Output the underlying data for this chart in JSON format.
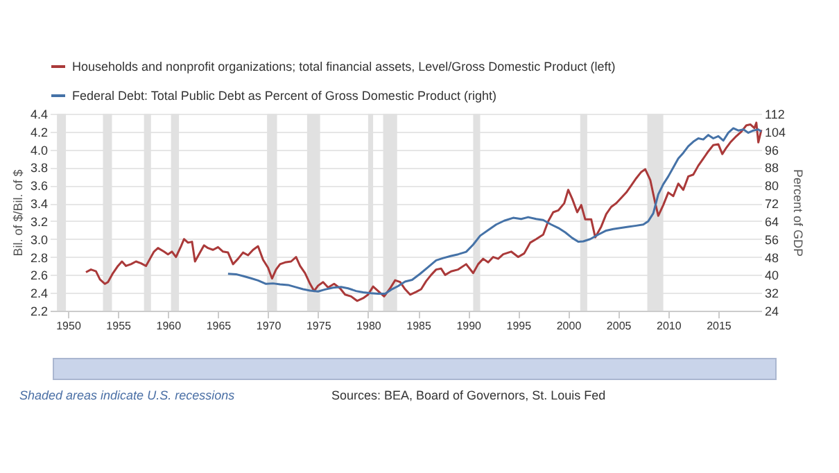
{
  "chart_data": {
    "type": "line",
    "ylabel": "Bil. of $/Bil. of $",
    "y2label": "Percent of GDP",
    "xlim": [
      1948.2,
      2019.3
    ],
    "xticks": [
      1950,
      1955,
      1960,
      1965,
      1970,
      1975,
      1980,
      1985,
      1990,
      1995,
      2000,
      2005,
      2010,
      2015
    ],
    "ylim": [
      2.2,
      4.4
    ],
    "yticks": [
      2.2,
      2.4,
      2.6,
      2.8,
      {
        "value": 3,
        "label": "3.0"
      },
      3.2,
      3.4,
      3.6,
      3.8,
      {
        "value": 4,
        "label": "4.0"
      },
      4.2,
      4.4
    ],
    "y2lim": [
      24,
      112
    ],
    "y2ticks": [
      24,
      32,
      40,
      48,
      56,
      64,
      72,
      80,
      88,
      96,
      104,
      112
    ],
    "grid": "y",
    "legend": "top left",
    "bands": [
      {
        "axis": "x",
        "from": 1948.9,
        "to": 1949.8,
        "color": "#e1e1e1"
      },
      {
        "axis": "x",
        "from": 1953.5,
        "to": 1954.4,
        "color": "#e1e1e1"
      },
      {
        "axis": "x",
        "from": 1957.6,
        "to": 1958.3,
        "color": "#e1e1e1"
      },
      {
        "axis": "x",
        "from": 1960.3,
        "to": 1961.1,
        "color": "#e1e1e1"
      },
      {
        "axis": "x",
        "from": 1969.9,
        "to": 1970.9,
        "color": "#e1e1e1"
      },
      {
        "axis": "x",
        "from": 1973.9,
        "to": 1975.2,
        "color": "#e1e1e1"
      },
      {
        "axis": "x",
        "from": 1980.0,
        "to": 1980.5,
        "color": "#e1e1e1"
      },
      {
        "axis": "x",
        "from": 1981.5,
        "to": 1982.9,
        "color": "#e1e1e1"
      },
      {
        "axis": "x",
        "from": 1990.5,
        "to": 1991.2,
        "color": "#e1e1e1"
      },
      {
        "axis": "x",
        "from": 2001.2,
        "to": 2001.9,
        "color": "#e1e1e1"
      },
      {
        "axis": "x",
        "from": 2007.9,
        "to": 2009.5,
        "color": "#e1e1e1"
      }
    ],
    "annotations": [
      "Shaded areas indicate U.S. recessions",
      "Sources: BEA, Board of Governors, St. Louis Fed"
    ],
    "series": [
      {
        "name": "Households and nonprofit organizations; total financial assets, Level/Gross Domestic Product (left)",
        "color": "#aa3939",
        "x": [
          1951.8,
          1952.3,
          1952.8,
          1953.2,
          1953.7,
          1954.0,
          1954.5,
          1955.0,
          1955.4,
          1955.8,
          1956.3,
          1956.8,
          1957.3,
          1957.8,
          1958.2,
          1958.6,
          1959.0,
          1959.6,
          1960.0,
          1960.4,
          1960.8,
          1961.3,
          1961.6,
          1962.0,
          1962.4,
          1962.7,
          1963.2,
          1963.6,
          1964.0,
          1964.5,
          1965.0,
          1965.5,
          1966.0,
          1966.5,
          1967.0,
          1967.5,
          1968.0,
          1968.5,
          1969.0,
          1969.5,
          1970.0,
          1970.4,
          1970.8,
          1971.2,
          1971.7,
          1972.3,
          1972.8,
          1973.2,
          1973.7,
          1974.2,
          1974.6,
          1975.0,
          1975.5,
          1976.0,
          1976.6,
          1977.2,
          1977.7,
          1978.3,
          1978.9,
          1979.5,
          1980.0,
          1980.5,
          1981.0,
          1981.6,
          1982.2,
          1982.7,
          1983.2,
          1983.7,
          1984.2,
          1984.8,
          1985.3,
          1985.8,
          1986.3,
          1986.8,
          1987.3,
          1987.7,
          1988.3,
          1989.0,
          1989.8,
          1990.5,
          1991.0,
          1991.5,
          1992.0,
          1992.5,
          1993.0,
          1993.5,
          1994.3,
          1995.0,
          1995.6,
          1996.2,
          1996.8,
          1997.5,
          1998.0,
          1998.5,
          1999.0,
          1999.6,
          2000.0,
          2000.4,
          2000.9,
          2001.3,
          2001.7,
          2002.3,
          2002.7,
          2003.3,
          2003.8,
          2004.3,
          2004.8,
          2005.3,
          2005.8,
          2006.3,
          2006.8,
          2007.3,
          2007.7,
          2008.2,
          2008.7,
          2009.0,
          2009.5,
          2010.0,
          2010.5,
          2011.0,
          2011.5,
          2012.0,
          2012.5,
          2013.0,
          2013.5,
          2014.0,
          2014.5,
          2015.0,
          2015.4,
          2015.8,
          2016.2,
          2016.8,
          2017.3,
          2017.8,
          2018.2,
          2018.6,
          2018.8,
          2019.0,
          2019.3
        ],
        "values": [
          2.63,
          2.66,
          2.64,
          2.55,
          2.5,
          2.52,
          2.62,
          2.7,
          2.75,
          2.7,
          2.72,
          2.75,
          2.73,
          2.7,
          2.78,
          2.86,
          2.9,
          2.86,
          2.83,
          2.86,
          2.8,
          2.92,
          3.0,
          2.96,
          2.97,
          2.75,
          2.85,
          2.93,
          2.9,
          2.88,
          2.91,
          2.86,
          2.85,
          2.72,
          2.78,
          2.85,
          2.82,
          2.88,
          2.92,
          2.77,
          2.68,
          2.56,
          2.66,
          2.72,
          2.74,
          2.75,
          2.8,
          2.7,
          2.62,
          2.5,
          2.42,
          2.48,
          2.52,
          2.46,
          2.5,
          2.45,
          2.38,
          2.36,
          2.31,
          2.34,
          2.38,
          2.47,
          2.42,
          2.36,
          2.45,
          2.54,
          2.52,
          2.44,
          2.38,
          2.41,
          2.44,
          2.53,
          2.6,
          2.66,
          2.67,
          2.6,
          2.64,
          2.66,
          2.72,
          2.62,
          2.72,
          2.78,
          2.74,
          2.8,
          2.78,
          2.83,
          2.86,
          2.8,
          2.84,
          2.96,
          3.0,
          3.05,
          3.2,
          3.3,
          3.32,
          3.4,
          3.55,
          3.45,
          3.3,
          3.38,
          3.22,
          3.22,
          3.02,
          3.14,
          3.28,
          3.36,
          3.4,
          3.46,
          3.52,
          3.6,
          3.68,
          3.75,
          3.78,
          3.66,
          3.4,
          3.26,
          3.38,
          3.52,
          3.48,
          3.62,
          3.55,
          3.7,
          3.72,
          3.82,
          3.9,
          3.98,
          4.05,
          4.06,
          3.95,
          4.02,
          4.08,
          4.15,
          4.2,
          4.27,
          4.28,
          4.24,
          4.3,
          4.08,
          4.22
        ]
      },
      {
        "name": "Federal Debt: Total Public Debt as Percent of Gross Domestic Product (right)",
        "color": "#4572a7",
        "axis": "y2",
        "x": [
          1966.0,
          1966.8,
          1967.5,
          1968.3,
          1969.0,
          1969.8,
          1970.5,
          1971.2,
          1972.0,
          1972.8,
          1973.5,
          1974.2,
          1975.0,
          1975.7,
          1976.5,
          1977.3,
          1978.0,
          1978.8,
          1979.5,
          1980.3,
          1981.0,
          1981.7,
          1982.3,
          1983.0,
          1983.7,
          1984.4,
          1985.2,
          1986.0,
          1986.8,
          1987.5,
          1988.3,
          1989.0,
          1989.8,
          1990.5,
          1991.2,
          1992.0,
          1992.8,
          1993.6,
          1994.5,
          1995.3,
          1996.0,
          1996.8,
          1997.5,
          1998.3,
          1999.0,
          1999.7,
          2000.4,
          2001.0,
          2001.5,
          2002.2,
          2003.0,
          2003.8,
          2004.5,
          2005.3,
          2006.0,
          2006.8,
          2007.5,
          2008.0,
          2008.5,
          2009.0,
          2009.5,
          2010.0,
          2010.5,
          2011.0,
          2011.5,
          2012.0,
          2012.5,
          2013.0,
          2013.5,
          2014.0,
          2014.5,
          2015.0,
          2015.5,
          2016.0,
          2016.5,
          2017.0,
          2017.5,
          2018.0,
          2018.5,
          2019.0,
          2019.3
        ],
        "values": [
          40.5,
          40.3,
          39.5,
          38.5,
          37.5,
          36.0,
          36.2,
          35.8,
          35.5,
          34.5,
          33.6,
          33.0,
          32.6,
          33.5,
          34.3,
          34.6,
          34.0,
          32.8,
          32.2,
          31.8,
          31.6,
          31.6,
          33.4,
          35.0,
          37.0,
          37.8,
          40.5,
          43.5,
          46.5,
          47.5,
          48.5,
          49.2,
          50.3,
          53.5,
          57.5,
          60.0,
          62.5,
          64.2,
          65.5,
          65.0,
          65.8,
          65.0,
          64.5,
          62.5,
          61.0,
          59.0,
          56.5,
          54.8,
          55.0,
          56.0,
          58.0,
          59.8,
          60.5,
          61.0,
          61.5,
          62.0,
          62.5,
          64.0,
          67.5,
          76.0,
          80.5,
          84,
          88,
          92,
          94.5,
          97.5,
          99.5,
          101,
          100.5,
          102.5,
          101,
          102,
          100,
          103.5,
          105.5,
          104.5,
          105,
          103.5,
          104.5,
          105,
          104
        ]
      }
    ]
  }
}
